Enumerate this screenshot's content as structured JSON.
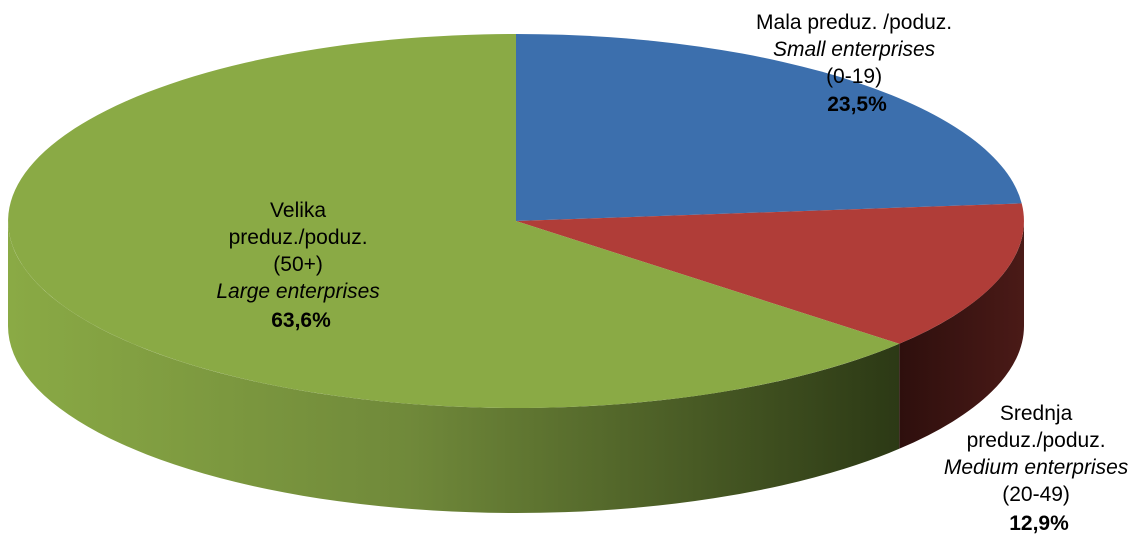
{
  "chart_data": {
    "type": "pie",
    "style": "3d",
    "legend": "none",
    "slices": [
      {
        "label_hr": "Mala preduz. /poduz.",
        "label_en": "Small enterprises",
        "range": "(0-19)",
        "value": 23.5,
        "value_text": "23,5%",
        "color": "#3C6FAD",
        "side_color": "#1F3E66"
      },
      {
        "label_hr": "Srednja preduz./poduz.",
        "label_en": "Medium enterprises",
        "range": "(20-49)",
        "value": 12.9,
        "value_text": "12,9%",
        "color": "#B03D38",
        "side_color": "#3A1512"
      },
      {
        "label_hr": "Velika preduz./poduz.",
        "label_en": "Large enterprises",
        "range": "(50+)",
        "value": 63.6,
        "value_text": "63,6%",
        "color": "#8AAA45",
        "side_color": "#3A4A1E"
      }
    ]
  }
}
